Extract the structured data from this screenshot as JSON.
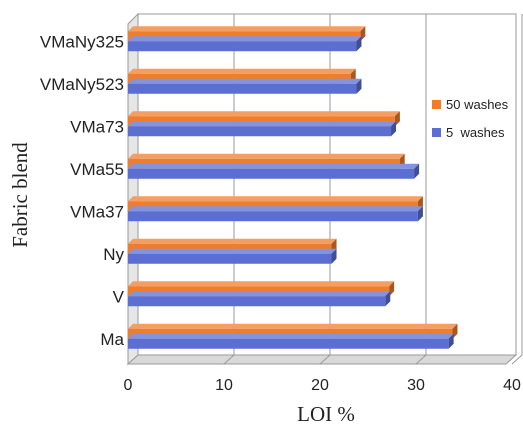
{
  "chart_data": {
    "type": "bar",
    "orientation": "horizontal",
    "style": "3d",
    "categories": [
      "VMaNy325",
      "VMaNy523",
      "VMa73",
      "VMa55",
      "VMa37",
      "Ny",
      "V",
      "Ma"
    ],
    "series": [
      {
        "name": "50 washes",
        "color": "#f07d2c",
        "values": [
          24.2,
          23.2,
          27.8,
          28.3,
          30.2,
          21.2,
          27.2,
          33.8
        ]
      },
      {
        "name": "5  washes",
        "color": "#5b6fd3",
        "values": [
          23.8,
          23.8,
          27.4,
          29.8,
          30.2,
          21.2,
          26.8,
          33.4
        ]
      }
    ],
    "xlabel": "LOI %",
    "ylabel": "Fabric blend",
    "xlim": [
      0,
      40
    ],
    "xticks": [
      "0",
      "10",
      "20",
      "30",
      "40"
    ],
    "grid": true,
    "legend_position": "right"
  }
}
